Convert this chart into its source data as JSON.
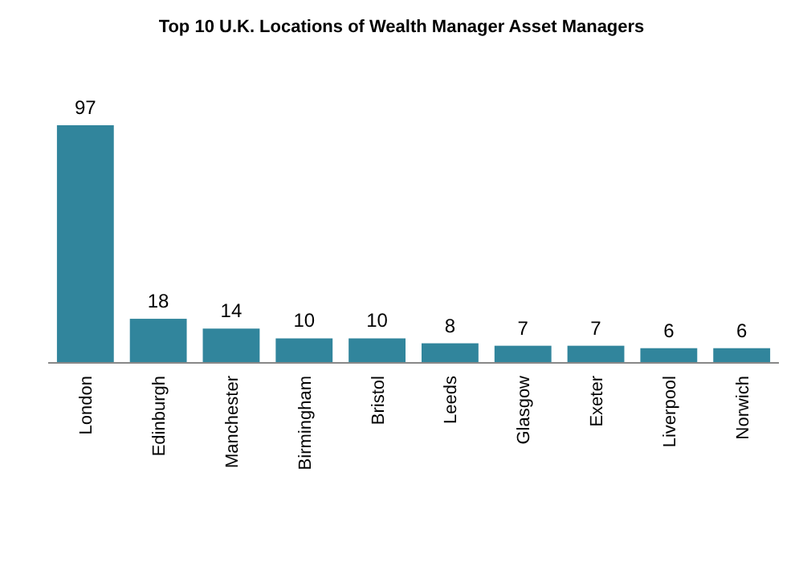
{
  "chart_data": {
    "type": "bar",
    "title": "Top 10  U.K. Locations of Wealth Manager Asset Managers",
    "categories": [
      "London",
      "Edinburgh",
      "Manchester",
      "Birmingham",
      "Bristol",
      "Leeds",
      "Glasgow",
      "Exeter",
      "Liverpool",
      "Norwich"
    ],
    "values": [
      97,
      18,
      14,
      10,
      10,
      8,
      7,
      7,
      6,
      6
    ],
    "color": "#31859c",
    "data_labels": true
  }
}
